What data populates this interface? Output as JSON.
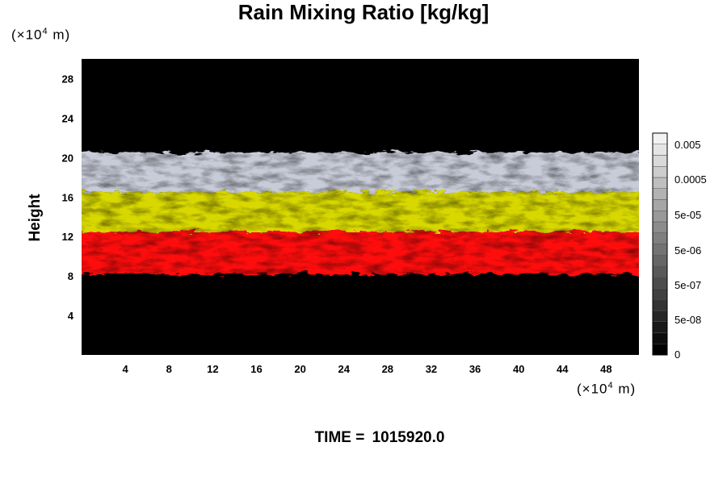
{
  "chart_data": {
    "type": "heatmap",
    "title": "Rain Mixing Ratio [kg/kg]",
    "xlabel": "",
    "ylabel": "Height",
    "x_unit_prefix": "(×10",
    "x_unit_exp": "4",
    "x_unit_suffix": " m)",
    "y_unit_prefix": "(×10",
    "y_unit_exp": "4",
    "y_unit_suffix": " m)",
    "xlim": [
      0,
      51
    ],
    "ylim": [
      0,
      30
    ],
    "x_ticks": [
      4,
      8,
      12,
      16,
      20,
      24,
      28,
      32,
      36,
      40,
      44,
      48
    ],
    "y_ticks": [
      4,
      8,
      12,
      16,
      20,
      24,
      28
    ],
    "colorbar": {
      "tick_labels": [
        "0.005",
        "0.0005",
        "5e-05",
        "5e-06",
        "5e-07",
        "5e-08",
        "0"
      ],
      "levels": 20,
      "colors": [
        "#000000",
        "#f2f2f2"
      ]
    },
    "layers": [
      {
        "name": "upper",
        "color": "#c8ccd8",
        "y_range": [
          16.5,
          20.5
        ]
      },
      {
        "name": "middle",
        "color": "#d8d800",
        "y_range": [
          12.5,
          16.5
        ]
      },
      {
        "name": "lower",
        "color": "#ff1010",
        "y_range": [
          8.2,
          12.5
        ]
      }
    ]
  },
  "time_label": "TIME = ",
  "time_value": "1015920.0"
}
